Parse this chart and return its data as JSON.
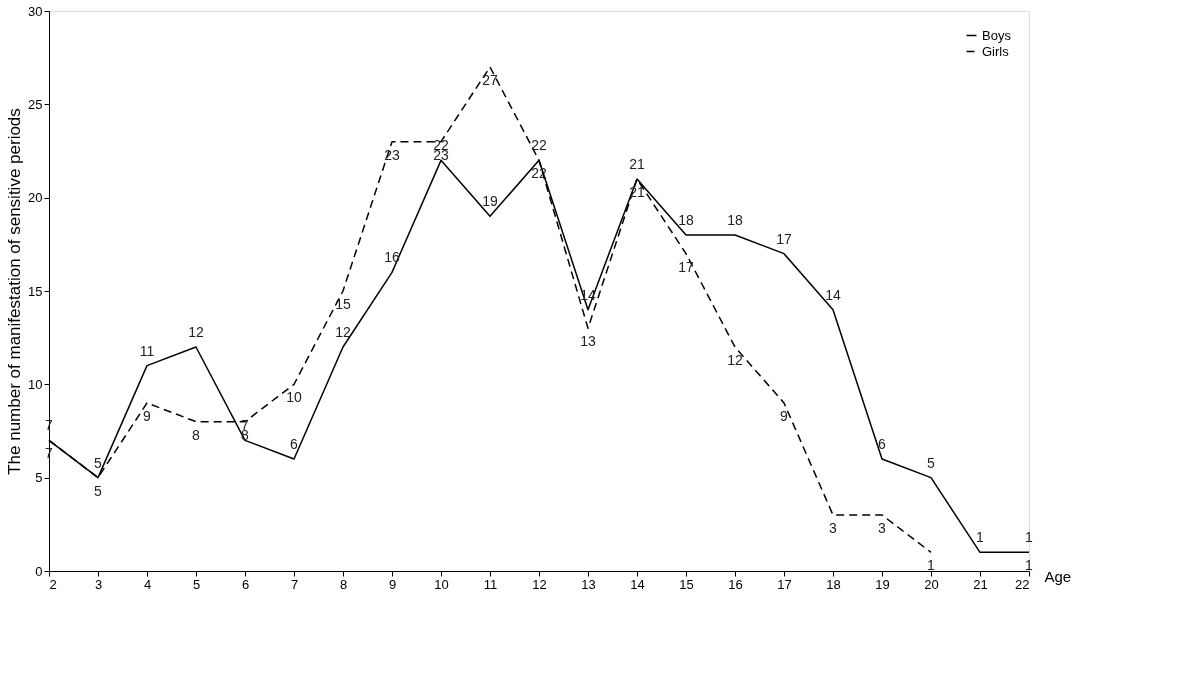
{
  "chart_data": {
    "type": "line",
    "xlabel": "Age",
    "ylabel": "The number of manifestation of sensitive periods",
    "x": [
      2,
      3,
      4,
      5,
      6,
      7,
      8,
      9,
      10,
      11,
      12,
      13,
      14,
      15,
      16,
      17,
      18,
      19,
      20,
      21,
      22
    ],
    "series": [
      {
        "name": "Boys",
        "color": "#000000",
        "line_style": "solid",
        "values": [
          7,
          5,
          11,
          12,
          7,
          6,
          12,
          16,
          22,
          19,
          22,
          14,
          21,
          18,
          18,
          17,
          14,
          6,
          5,
          1,
          1
        ]
      },
      {
        "name": "Girls",
        "color": "#000000",
        "line_style": "dashed",
        "values": [
          7,
          5,
          9,
          8,
          8,
          10,
          15,
          23,
          23,
          27,
          22,
          13,
          21,
          17,
          12,
          9,
          3,
          3,
          1,
          null,
          null
        ]
      }
    ],
    "annotations": [
      {
        "text": "1",
        "x": 22,
        "y": 1
      }
    ],
    "xlim": [
      2,
      22
    ],
    "xticks": [
      2,
      3,
      4,
      5,
      6,
      7,
      8,
      9,
      10,
      11,
      12,
      13,
      14,
      15,
      16,
      17,
      18,
      19,
      20,
      21,
      22
    ],
    "ylim": [
      0,
      30
    ],
    "yticks": [
      0,
      5,
      10,
      15,
      20,
      25,
      30
    ],
    "data_labels": true,
    "grid": false,
    "legend": "top right",
    "marker": "none"
  }
}
